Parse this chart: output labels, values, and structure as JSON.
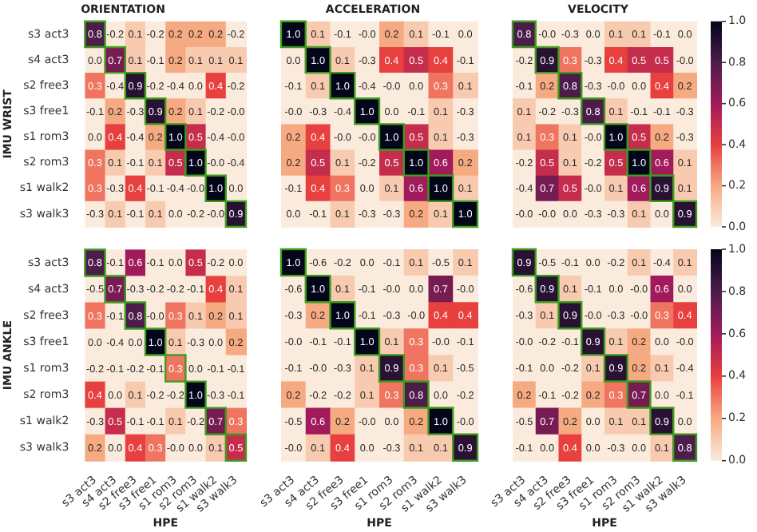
{
  "chart_data": [
    {
      "type": "heatmap",
      "title": "ORIENTATION",
      "ylabel": "IMU WRIST",
      "data_labels": true,
      "tick_labels": "y",
      "categories": [
        "s3 act3",
        "s4 act3",
        "s2 free3",
        "s3 free1",
        "s1 rom3",
        "s2 rom3",
        "s1 walk2",
        "s3 walk3"
      ],
      "y_categories": [
        "s3 act3",
        "s4 act3",
        "s2 free3",
        "s3 free1",
        "s1 rom3",
        "s2 rom3",
        "s1 walk2",
        "s3 walk3"
      ],
      "cells": [
        [
          0.8,
          -0.2,
          0.1,
          -0.2,
          0.2,
          0.2,
          0.2,
          -0.2
        ],
        [
          0.0,
          0.7,
          0.1,
          -0.1,
          0.2,
          0.1,
          0.1,
          0.1
        ],
        [
          0.3,
          -0.4,
          0.9,
          -0.2,
          -0.4,
          0.0,
          0.4,
          -0.2
        ],
        [
          -0.1,
          0.2,
          -0.3,
          0.9,
          0.2,
          0.1,
          -0.2,
          -0.0
        ],
        [
          0.0,
          0.4,
          -0.4,
          0.2,
          1.0,
          0.5,
          -0.4,
          -0.0
        ],
        [
          0.3,
          0.1,
          -0.1,
          0.1,
          0.5,
          1.0,
          -0.0,
          -0.4
        ],
        [
          0.3,
          -0.3,
          0.4,
          -0.1,
          -0.4,
          -0.0,
          1.0,
          0.0
        ],
        [
          -0.3,
          0.1,
          -0.1,
          0.1,
          0.0,
          -0.2,
          -0.0,
          0.9
        ]
      ],
      "cell_labels": [
        [
          "0.8",
          "-0.2",
          "0.1",
          "-0.2",
          "0.2",
          "0.2",
          "0.2",
          "-0.2"
        ],
        [
          "0.0",
          "0.7",
          "0.1",
          "-0.1",
          "0.2",
          "0.1",
          "0.1",
          "0.1"
        ],
        [
          "0.3",
          "-0.4",
          "0.9",
          "-0.2",
          "-0.4",
          "0.0",
          "0.4",
          "-0.2"
        ],
        [
          "-0.1",
          "0.2",
          "-0.3",
          "0.9",
          "0.2",
          "0.1",
          "-0.2",
          "-0.0"
        ],
        [
          "0.0",
          "0.4",
          "-0.4",
          "0.2",
          "1.0",
          "0.5",
          "-0.4",
          "-0.0"
        ],
        [
          "0.3",
          "0.1",
          "-0.1",
          "0.1",
          "0.5",
          "1.0",
          "-0.0",
          "-0.4"
        ],
        [
          "0.3",
          "-0.3",
          "0.4",
          "-0.1",
          "-0.4",
          "-0.0",
          "1.0",
          "0.0"
        ],
        [
          "-0.3",
          "0.1",
          "-0.1",
          "0.1",
          "0.0",
          "-0.2",
          "-0.0",
          "0.9"
        ]
      ]
    },
    {
      "type": "heatmap",
      "title": "ACCELERATION",
      "data_labels": true,
      "tick_labels": false,
      "categories": [
        "s3 act3",
        "s4 act3",
        "s2 free3",
        "s3 free1",
        "s1 rom3",
        "s2 rom3",
        "s1 walk2",
        "s3 walk3"
      ],
      "y_categories": [
        "s3 act3",
        "s4 act3",
        "s2 free3",
        "s3 free1",
        "s1 rom3",
        "s2 rom3",
        "s1 walk2",
        "s3 walk3"
      ],
      "cells": [
        [
          1.0,
          0.1,
          -0.1,
          -0.0,
          0.2,
          0.1,
          -0.1,
          0.0
        ],
        [
          0.0,
          1.0,
          0.1,
          -0.3,
          0.4,
          0.5,
          0.4,
          -0.1
        ],
        [
          -0.1,
          0.1,
          1.0,
          -0.4,
          -0.0,
          0.0,
          0.3,
          0.1
        ],
        [
          -0.0,
          -0.3,
          -0.4,
          1.0,
          0.0,
          -0.1,
          0.1,
          -0.3
        ],
        [
          0.2,
          0.4,
          -0.0,
          -0.0,
          1.0,
          0.5,
          0.1,
          -0.3
        ],
        [
          0.2,
          0.5,
          0.1,
          -0.2,
          0.5,
          1.0,
          0.6,
          0.2
        ],
        [
          -0.1,
          0.4,
          0.3,
          0.0,
          0.1,
          0.6,
          1.0,
          0.1
        ],
        [
          0.0,
          -0.1,
          0.1,
          -0.3,
          -0.3,
          0.2,
          0.1,
          1.0
        ]
      ],
      "cell_labels": [
        [
          "1.0",
          "0.1",
          "-0.1",
          "-0.0",
          "0.2",
          "0.1",
          "-0.1",
          "0.0"
        ],
        [
          "0.0",
          "1.0",
          "0.1",
          "-0.3",
          "0.4",
          "0.5",
          "0.4",
          "-0.1"
        ],
        [
          "-0.1",
          "0.1",
          "1.0",
          "-0.4",
          "-0.0",
          "0.0",
          "0.3",
          "0.1"
        ],
        [
          "-0.0",
          "-0.3",
          "-0.4",
          "1.0",
          "0.0",
          "-0.1",
          "0.1",
          "-0.3"
        ],
        [
          "0.2",
          "0.4",
          "-0.0",
          "-0.0",
          "1.0",
          "0.5",
          "0.1",
          "-0.3"
        ],
        [
          "0.2",
          "0.5",
          "0.1",
          "-0.2",
          "0.5",
          "1.0",
          "0.6",
          "0.2"
        ],
        [
          "-0.1",
          "0.4",
          "0.3",
          "0.0",
          "0.1",
          "0.6",
          "1.0",
          "0.1"
        ],
        [
          "0.0",
          "-0.1",
          "0.1",
          "-0.3",
          "-0.3",
          "0.2",
          "0.1",
          "1.0"
        ]
      ]
    },
    {
      "type": "heatmap",
      "title": "VELOCITY",
      "data_labels": true,
      "tick_labels": false,
      "categories": [
        "s3 act3",
        "s4 act3",
        "s2 free3",
        "s3 free1",
        "s1 rom3",
        "s2 rom3",
        "s1 walk2",
        "s3 walk3"
      ],
      "y_categories": [
        "s3 act3",
        "s4 act3",
        "s2 free3",
        "s3 free1",
        "s1 rom3",
        "s2 rom3",
        "s1 walk2",
        "s3 walk3"
      ],
      "cells": [
        [
          0.8,
          -0.0,
          -0.3,
          0.0,
          0.1,
          0.1,
          -0.1,
          0.0
        ],
        [
          -0.2,
          0.9,
          0.3,
          -0.3,
          0.4,
          0.5,
          0.5,
          -0.0
        ],
        [
          -0.1,
          0.2,
          0.8,
          -0.3,
          -0.0,
          0.0,
          0.4,
          0.2
        ],
        [
          0.1,
          -0.2,
          -0.3,
          0.8,
          0.1,
          -0.1,
          -0.1,
          -0.3
        ],
        [
          0.1,
          0.3,
          0.1,
          -0.0,
          1.0,
          0.5,
          0.2,
          -0.3
        ],
        [
          -0.2,
          0.5,
          0.1,
          -0.2,
          0.5,
          1.0,
          0.6,
          0.1
        ],
        [
          -0.4,
          0.7,
          0.5,
          -0.0,
          0.1,
          0.6,
          0.9,
          0.1
        ],
        [
          -0.0,
          -0.0,
          0.0,
          -0.3,
          -0.3,
          0.1,
          0.0,
          0.9
        ]
      ],
      "cell_labels": [
        [
          "0.8",
          "-0.0",
          "-0.3",
          "0.0",
          "0.1",
          "0.1",
          "-0.1",
          "0.0"
        ],
        [
          "-0.2",
          "0.9",
          "0.3",
          "-0.3",
          "0.4",
          "0.5",
          "0.5",
          "-0.0"
        ],
        [
          "-0.1",
          "0.2",
          "0.8",
          "-0.3",
          "-0.0",
          "0.0",
          "0.4",
          "0.2"
        ],
        [
          "0.1",
          "-0.2",
          "-0.3",
          "0.8",
          "0.1",
          "-0.1",
          "-0.1",
          "-0.3"
        ],
        [
          "0.1",
          "0.3",
          "0.1",
          "-0.0",
          "1.0",
          "0.5",
          "0.2",
          "-0.3"
        ],
        [
          "-0.2",
          "0.5",
          "0.1",
          "-0.2",
          "0.5",
          "1.0",
          "0.6",
          "0.1"
        ],
        [
          "-0.4",
          "0.7",
          "0.5",
          "-0.0",
          "0.1",
          "0.6",
          "0.9",
          "0.1"
        ],
        [
          "-0.0",
          "-0.0",
          "0.0",
          "-0.3",
          "-0.3",
          "0.1",
          "0.0",
          "0.9"
        ]
      ],
      "clim": [
        0,
        1
      ],
      "cticks": [
        {
          "value": 0,
          "label": "0.0"
        },
        {
          "value": 0.2,
          "label": "0.2"
        },
        {
          "value": 0.4,
          "label": "0.4"
        },
        {
          "value": 0.6,
          "label": "0.6"
        },
        {
          "value": 0.8,
          "label": "0.8"
        },
        {
          "value": 1,
          "label": "1.0"
        }
      ]
    },
    {
      "type": "heatmap",
      "ylabel": "IMU ANKLE",
      "xlabel": "HPE",
      "data_labels": true,
      "categories": [
        "s3 act3",
        "s4 act3",
        "s2 free3",
        "s3 free1",
        "s1 rom3",
        "s2 rom3",
        "s1 walk2",
        "s3 walk3"
      ],
      "y_categories": [
        "s3 act3",
        "s4 act3",
        "s2 free3",
        "s3 free1",
        "s1 rom3",
        "s2 rom3",
        "s1 walk2",
        "s3 walk3"
      ],
      "cells": [
        [
          0.8,
          -0.1,
          0.6,
          -0.1,
          0.0,
          0.5,
          -0.2,
          0.0
        ],
        [
          -0.5,
          0.7,
          -0.3,
          -0.2,
          -0.2,
          -0.1,
          0.4,
          0.1
        ],
        [
          0.3,
          -0.1,
          0.8,
          -0.0,
          0.3,
          0.1,
          0.2,
          0.1
        ],
        [
          0.0,
          -0.4,
          0.0,
          1.0,
          0.1,
          -0.3,
          0.0,
          0.2
        ],
        [
          -0.2,
          -0.1,
          -0.2,
          -0.1,
          0.3,
          0.0,
          -0.1,
          -0.1
        ],
        [
          0.4,
          0.0,
          0.1,
          -0.2,
          -0.2,
          1.0,
          -0.3,
          -0.1
        ],
        [
          -0.3,
          0.5,
          -0.1,
          -0.1,
          0.1,
          -0.2,
          0.7,
          0.3
        ],
        [
          0.2,
          0.0,
          0.4,
          0.3,
          -0.0,
          0.0,
          0.1,
          0.5
        ]
      ],
      "cell_labels": [
        [
          "0.8",
          "-0.1",
          "0.6",
          "-0.1",
          "0.0",
          "0.5",
          "-0.2",
          "0.0"
        ],
        [
          "-0.5",
          "0.7",
          "-0.3",
          "-0.2",
          "-0.2",
          "-0.1",
          "0.4",
          "0.1"
        ],
        [
          "0.3",
          "-0.1",
          "0.8",
          "-0.0",
          "0.3",
          "0.1",
          "0.2",
          "0.1"
        ],
        [
          "0.0",
          "-0.4",
          "0.0",
          "1.0",
          "0.1",
          "-0.3",
          "0.0",
          "0.2"
        ],
        [
          "-0.2",
          "-0.1",
          "-0.2",
          "-0.1",
          "0.3",
          "0.0",
          "-0.1",
          "-0.1"
        ],
        [
          "0.4",
          "0.0",
          "0.1",
          "-0.2",
          "-0.2",
          "1.0",
          "-0.3",
          "-0.1"
        ],
        [
          "-0.3",
          "0.5",
          "-0.1",
          "-0.1",
          "0.1",
          "-0.2",
          "0.7",
          "0.3"
        ],
        [
          "0.2",
          "0.0",
          "0.4",
          "0.3",
          "-0.0",
          "0.0",
          "0.1",
          "0.5"
        ]
      ]
    },
    {
      "type": "heatmap",
      "xlabel": "HPE",
      "data_labels": true,
      "tick_labels": "x",
      "categories": [
        "s3 act3",
        "s4 act3",
        "s2 free3",
        "s3 free1",
        "s1 rom3",
        "s2 rom3",
        "s1 walk2",
        "s3 walk3"
      ],
      "y_categories": [
        "s3 act3",
        "s4 act3",
        "s2 free3",
        "s3 free1",
        "s1 rom3",
        "s2 rom3",
        "s1 walk2",
        "s3 walk3"
      ],
      "cells": [
        [
          1.0,
          -0.6,
          -0.2,
          0.0,
          -0.1,
          0.1,
          -0.5,
          0.1
        ],
        [
          -0.6,
          1.0,
          0.1,
          -0.1,
          -0.0,
          0.0,
          0.7,
          -0.0
        ],
        [
          -0.3,
          0.2,
          1.0,
          -0.1,
          -0.3,
          -0.0,
          0.4,
          0.4
        ],
        [
          -0.0,
          -0.1,
          -0.1,
          1.0,
          0.1,
          0.3,
          -0.0,
          -0.1
        ],
        [
          -0.1,
          -0.0,
          -0.3,
          0.1,
          0.9,
          0.3,
          0.1,
          -0.5
        ],
        [
          0.2,
          -0.2,
          -0.2,
          0.1,
          0.3,
          0.8,
          0.0,
          -0.2
        ],
        [
          -0.5,
          0.6,
          0.2,
          -0.0,
          0.0,
          0.2,
          1.0,
          -0.0
        ],
        [
          -0.0,
          0.1,
          0.4,
          0.0,
          -0.3,
          0.1,
          0.1,
          0.9
        ]
      ],
      "cell_labels": [
        [
          "1.0",
          "-0.6",
          "-0.2",
          "0.0",
          "-0.1",
          "0.1",
          "-0.5",
          "0.1"
        ],
        [
          "-0.6",
          "1.0",
          "0.1",
          "-0.1",
          "-0.0",
          "0.0",
          "0.7",
          "-0.0"
        ],
        [
          "-0.3",
          "0.2",
          "1.0",
          "-0.1",
          "-0.3",
          "-0.0",
          "0.4",
          "0.4"
        ],
        [
          "-0.0",
          "-0.1",
          "-0.1",
          "1.0",
          "0.1",
          "0.3",
          "-0.0",
          "-0.1"
        ],
        [
          "-0.1",
          "-0.0",
          "-0.3",
          "0.1",
          "0.9",
          "0.3",
          "0.1",
          "-0.5"
        ],
        [
          "0.2",
          "-0.2",
          "-0.2",
          "0.1",
          "0.3",
          "0.8",
          "0.0",
          "-0.2"
        ],
        [
          "-0.5",
          "0.6",
          "0.2",
          "-0.0",
          "0.0",
          "0.2",
          "1.0",
          "-0.0"
        ],
        [
          "-0.0",
          "0.1",
          "0.4",
          "0.0",
          "-0.3",
          "0.1",
          "0.1",
          "0.9"
        ]
      ]
    },
    {
      "type": "heatmap",
      "xlabel": "HPE",
      "data_labels": true,
      "tick_labels": "x",
      "categories": [
        "s3 act3",
        "s4 act3",
        "s2 free3",
        "s3 free1",
        "s1 rom3",
        "s2 rom3",
        "s1 walk2",
        "s3 walk3"
      ],
      "y_categories": [
        "s3 act3",
        "s4 act3",
        "s2 free3",
        "s3 free1",
        "s1 rom3",
        "s2 rom3",
        "s1 walk2",
        "s3 walk3"
      ],
      "cells": [
        [
          0.9,
          -0.5,
          -0.1,
          0.0,
          -0.2,
          0.1,
          -0.4,
          0.1
        ],
        [
          -0.6,
          0.9,
          0.1,
          -0.1,
          0.0,
          -0.0,
          0.6,
          0.0
        ],
        [
          -0.3,
          0.1,
          0.9,
          -0.0,
          -0.3,
          -0.0,
          0.3,
          0.4
        ],
        [
          -0.0,
          -0.2,
          -0.1,
          0.9,
          0.1,
          0.2,
          0.0,
          -0.0
        ],
        [
          -0.1,
          0.0,
          -0.2,
          0.1,
          0.9,
          0.2,
          0.1,
          -0.4
        ],
        [
          0.2,
          -0.1,
          -0.2,
          0.2,
          0.3,
          0.7,
          0.0,
          -0.1
        ],
        [
          -0.5,
          0.7,
          0.2,
          0.0,
          0.1,
          0.1,
          0.9,
          0.0
        ],
        [
          -0.1,
          0.0,
          0.4,
          0.0,
          -0.3,
          0.0,
          0.1,
          0.8
        ]
      ],
      "cell_labels": [
        [
          "0.9",
          "-0.5",
          "-0.1",
          "0.0",
          "-0.2",
          "0.1",
          "-0.4",
          "0.1"
        ],
        [
          "-0.6",
          "0.9",
          "0.1",
          "-0.1",
          "0.0",
          "-0.0",
          "0.6",
          "0.0"
        ],
        [
          "-0.3",
          "0.1",
          "0.9",
          "-0.0",
          "-0.3",
          "-0.0",
          "0.3",
          "0.4"
        ],
        [
          "-0.0",
          "-0.2",
          "-0.1",
          "0.9",
          "0.1",
          "0.2",
          "0.0",
          "-0.0"
        ],
        [
          "-0.1",
          "0.0",
          "-0.2",
          "0.1",
          "0.9",
          "0.2",
          "0.1",
          "-0.4"
        ],
        [
          "0.2",
          "-0.1",
          "-0.2",
          "0.2",
          "0.3",
          "0.7",
          "0.0",
          "-0.1"
        ],
        [
          "-0.5",
          "0.7",
          "0.2",
          "0.0",
          "0.1",
          "0.1",
          "0.9",
          "0.0"
        ],
        [
          "-0.1",
          "0.0",
          "0.4",
          "0.0",
          "-0.3",
          "0.0",
          "0.1",
          "0.8"
        ]
      ],
      "clim": [
        0,
        1
      ],
      "cticks": [
        {
          "value": 0,
          "label": "0.0"
        },
        {
          "value": 0.2,
          "label": "0.2"
        },
        {
          "value": 0.4,
          "label": "0.4"
        },
        {
          "value": 0.6,
          "label": "0.6"
        },
        {
          "value": 0.8,
          "label": "0.8"
        },
        {
          "value": 1,
          "label": "1.0"
        }
      ]
    }
  ]
}
